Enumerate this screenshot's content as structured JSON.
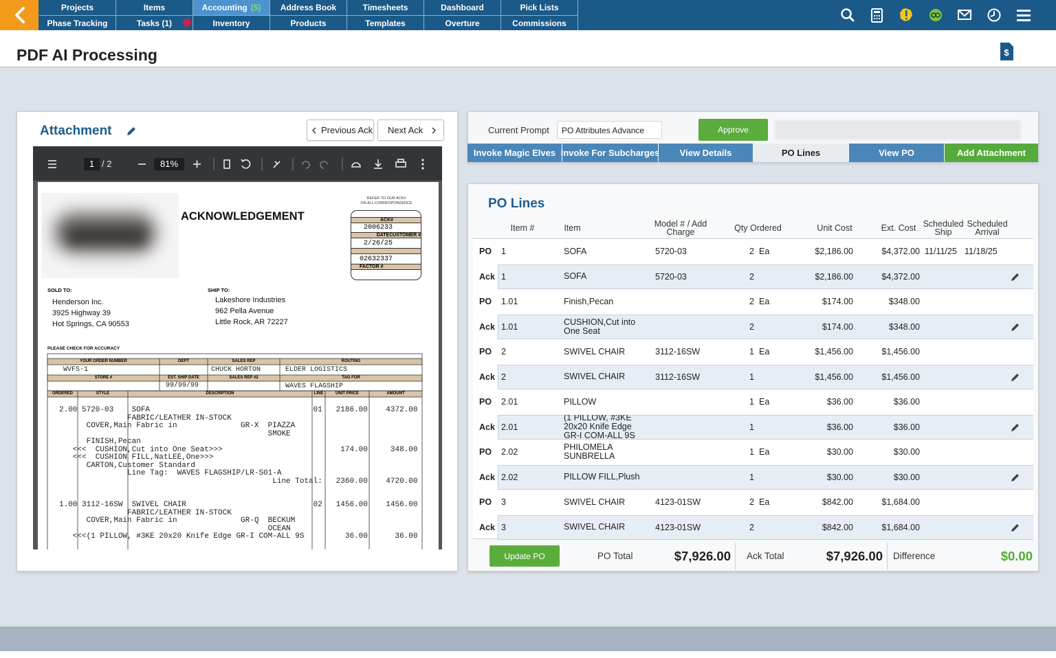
{
  "nav": {
    "top": [
      {
        "label": "Projects"
      },
      {
        "label": "Items"
      },
      {
        "label": "Accounting",
        "badge": "(5)"
      },
      {
        "label": "Address Book"
      },
      {
        "label": "Timesheets"
      },
      {
        "label": "Dashboard"
      },
      {
        "label": "Pick Lists"
      }
    ],
    "bottom": [
      {
        "label": "Phase Tracking"
      },
      {
        "label": "Tasks (1)"
      },
      {
        "label": "Inventory"
      },
      {
        "label": "Products"
      },
      {
        "label": "Templates"
      },
      {
        "label": "Overture"
      },
      {
        "label": "Commissions"
      }
    ]
  },
  "header": {
    "title": "PDF AI Processing"
  },
  "attachment": {
    "title": "Attachment",
    "prev": "Previous Ack",
    "next": "Next Ack",
    "viewer": {
      "page": "1",
      "pages": "/ 2",
      "zoom": "81%"
    }
  },
  "document": {
    "title": "ACKNOWLEDGEMENT",
    "refer": [
      "REFER TO OUR ACK#",
      "ON ALL CORRESPONDENCE"
    ],
    "ack_box": {
      "ack_label": "ACK#",
      "ack": "2006233",
      "date_label": "DATECUSTOMER #",
      "date": "2/26/25",
      "customer": "02632337",
      "factor_label": "FACTOR #"
    },
    "sold_to": {
      "label": "SOLD TO:",
      "lines": [
        "Henderson Inc.",
        "3925 Highway 39",
        "Hot Springs, CA 90553"
      ]
    },
    "ship_to": {
      "label": "SHIP TO:",
      "lines": [
        "Lakeshore Industries",
        "962 Pella Avenue",
        "Little Rock, AR 72227"
      ]
    },
    "check": "PLEASE CHECK FOR ACCURACY",
    "order": {
      "headers": [
        "YOUR ORDER NUMBER",
        "DEPT",
        "SALES REP",
        "ROUTING"
      ],
      "headers2": [
        "STORE #",
        "EST. SHIP DATE",
        "SALES REP #2",
        "TAG FOR"
      ],
      "order_number": "WVFS-1",
      "sales_rep": "CHUCK HORTON",
      "routing": "ELDER LOGISTICS",
      "est_ship_date": "99/99/99",
      "tag_for": "WAVES FLAGSHIP"
    },
    "item_headers": [
      "ORDERED",
      "STYLE",
      "DESCRIPTION",
      "LINE",
      "UNIT PRICE",
      "AMOUNT"
    ],
    "items": [
      {
        "lines": [
          "2.00 5720-03    SOFA                                    01   2186.00    4372.00",
          "               FABRIC/LEATHER IN-STOCK",
          "      COVER,Main Fabric in              GR-X  PIAZZA",
          "                                              SMOKE",
          "      FINISH,Pecan",
          "   <<<  CUSHION,Cut into One Seat>>>                          174.00     348.00",
          "   <<<  CUSHION FILL,NatLEE,One>>>",
          "      CARTON,Customer Standard",
          "               Line Tag:  WAVES FLAGSHIP/LR-S01-A",
          "                                               Line Total:   2360.00    4720.00"
        ]
      },
      {
        "lines": [
          "1.00 3112-16SW  SWIVEL CHAIR                            02   1456.00    1456.00",
          "               FABRIC/LEATHER IN-STOCK",
          "      COVER,Main Fabric in              GR-Q  BECKUM",
          "                                              OCEAN",
          "   <<<(1 PILLOW, #3KE 20x20 Knife Edge GR-I COM-ALL 9S         36.00      36.00"
        ]
      }
    ]
  },
  "prompt": {
    "label": "Current Prompt",
    "value": "PO Attributes Advance",
    "approve": "Approve"
  },
  "tabs": [
    "Invoke Magic Elves",
    "Invoke For Subcharges",
    "View Details",
    "PO Lines",
    "View PO",
    "Add Attachment"
  ],
  "po_lines": {
    "title": "PO Lines",
    "columns": [
      "Item #",
      "Item",
      "Model # / Add Charge",
      "Qty Ordered",
      "Unit Cost",
      "Ext. Cost",
      "Scheduled Ship",
      "Scheduled Arrival"
    ],
    "rows": [
      {
        "type": "PO",
        "item_no": "1",
        "item": "SOFA",
        "model": "5720-03",
        "qty": "2",
        "uom": "Ea",
        "unit_cost": "$2,186.00",
        "ext_cost": "$4,372.00",
        "ship": "11/11/25",
        "arrival": "11/18/25"
      },
      {
        "type": "Ack",
        "item_no": "1",
        "item": "SOFA",
        "model": "5720-03",
        "qty": "2",
        "unit_cost": "$2,186.00",
        "ext_cost": "$4,372.00"
      },
      {
        "type": "PO",
        "item_no": "1.01",
        "item": "Finish,Pecan",
        "qty": "2",
        "uom": "Ea",
        "unit_cost": "$174.00",
        "ext_cost": "$348.00"
      },
      {
        "type": "Ack",
        "item_no": "1.01",
        "item": "CUSHION,Cut into One Seat",
        "qty": "2",
        "unit_cost": "$174.00",
        "ext_cost": "$348.00"
      },
      {
        "type": "PO",
        "item_no": "2",
        "item": "SWIVEL CHAIR",
        "model": "3112-16SW",
        "qty": "1",
        "uom": "Ea",
        "unit_cost": "$1,456.00",
        "ext_cost": "$1,456.00"
      },
      {
        "type": "Ack",
        "item_no": "2",
        "item": "SWIVEL CHAIR",
        "model": "3112-16SW",
        "qty": "1",
        "unit_cost": "$1,456.00",
        "ext_cost": "$1,456.00"
      },
      {
        "type": "PO",
        "item_no": "2.01",
        "item": "PILLOW",
        "qty": "1",
        "uom": "Ea",
        "unit_cost": "$36.00",
        "ext_cost": "$36.00"
      },
      {
        "type": "Ack",
        "item_no": "2.01",
        "item": "(1 PILLOW, #3KE 20x20 Knife Edge GR-I COM-ALL 9S",
        "qty": "1",
        "unit_cost": "$36.00",
        "ext_cost": "$36.00"
      },
      {
        "type": "PO",
        "item_no": "2.02",
        "item": "PHILOMELA SUNBRELLA",
        "qty": "1",
        "uom": "Ea",
        "unit_cost": "$30.00",
        "ext_cost": "$30.00"
      },
      {
        "type": "Ack",
        "item_no": "2.02",
        "item": "PILLOW FILL,Plush",
        "qty": "1",
        "unit_cost": "$30.00",
        "ext_cost": "$30.00"
      },
      {
        "type": "PO",
        "item_no": "3",
        "item": "SWIVEL CHAIR",
        "model": "4123-01SW",
        "qty": "2",
        "uom": "Ea",
        "unit_cost": "$842.00",
        "ext_cost": "$1,684.00"
      },
      {
        "type": "Ack",
        "item_no": "3",
        "item": "SWIVEL CHAIR",
        "model": "4123-01SW",
        "qty": "2",
        "unit_cost": "$842.00",
        "ext_cost": "$1,684.00"
      }
    ],
    "footer": {
      "update": "Update PO",
      "po_total_label": "PO Total",
      "po_total": "$7,926.00",
      "ack_total_label": "Ack Total",
      "ack_total": "$7,926.00",
      "difference_label": "Difference",
      "difference": "$0.00"
    }
  }
}
